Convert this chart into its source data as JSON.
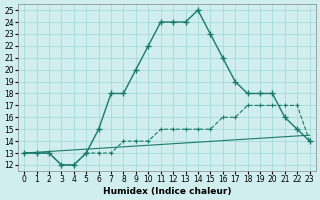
{
  "xlabel": "Humidex (Indice chaleur)",
  "ylabel": "",
  "bg_color": "#d0eeee",
  "grid_color": "#aadddd",
  "line_color": "#1a7a6a",
  "xlim": [
    -0.5,
    23.5
  ],
  "ylim": [
    11.5,
    25.5
  ],
  "xticks": [
    0,
    1,
    2,
    3,
    4,
    5,
    6,
    7,
    8,
    9,
    10,
    11,
    12,
    13,
    14,
    15,
    16,
    17,
    18,
    19,
    20,
    21,
    22,
    23
  ],
  "yticks": [
    12,
    13,
    14,
    15,
    16,
    17,
    18,
    19,
    20,
    21,
    22,
    23,
    24,
    25
  ],
  "main_x": [
    0,
    1,
    2,
    3,
    4,
    5,
    6,
    7,
    8,
    9,
    10,
    11,
    12,
    13,
    14,
    15,
    16,
    17,
    18,
    19,
    20,
    21,
    22,
    23
  ],
  "main_y": [
    13,
    13,
    13,
    12,
    12,
    13,
    15,
    18,
    18,
    20,
    22,
    24,
    24,
    24,
    25,
    23,
    21,
    19,
    18,
    18,
    18,
    16,
    15,
    14
  ],
  "line2_x": [
    0,
    1,
    2,
    3,
    4,
    5,
    6,
    7,
    8,
    9,
    10,
    11,
    12,
    13,
    14,
    15,
    16,
    17,
    18,
    19,
    20,
    21,
    22,
    23
  ],
  "line2_y": [
    13,
    13,
    13,
    12,
    12,
    13,
    13,
    13,
    14,
    14,
    14,
    15,
    15,
    15,
    15,
    15,
    16,
    16,
    17,
    17,
    17,
    17,
    17,
    14
  ],
  "line3_x": [
    0,
    23
  ],
  "line3_y": [
    13,
    14.5
  ]
}
